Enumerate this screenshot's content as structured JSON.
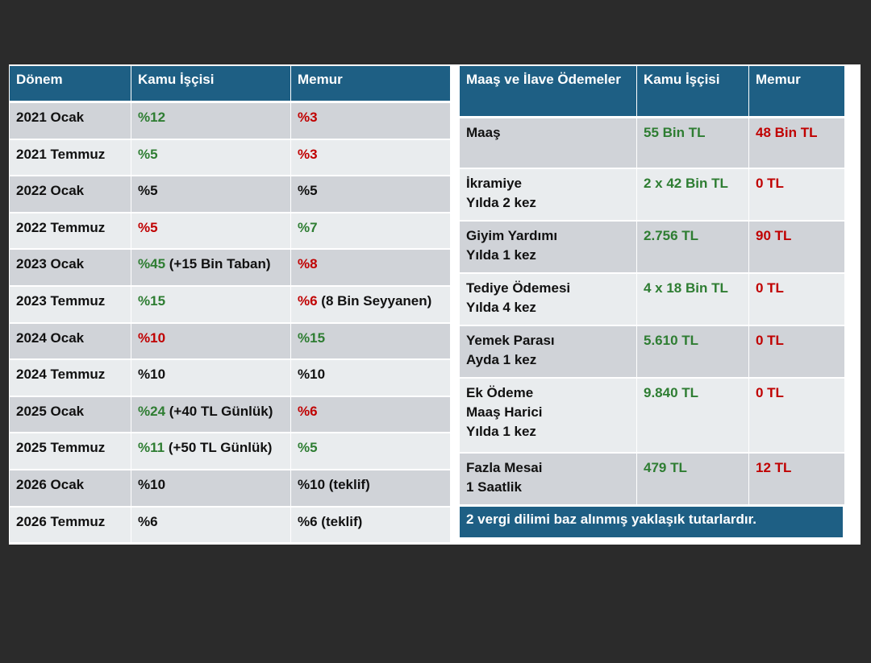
{
  "left_table": {
    "headers": [
      "Dönem",
      "Kamu İşçisi",
      "Memur"
    ],
    "rows": [
      {
        "period": "2021 Ocak",
        "worker": "%12",
        "worker_color": "g",
        "worker_extra": "",
        "officer": "%3",
        "officer_color": "r",
        "officer_extra": ""
      },
      {
        "period": "2021 Temmuz",
        "worker": "%5",
        "worker_color": "g",
        "worker_extra": "",
        "officer": "%3",
        "officer_color": "r",
        "officer_extra": ""
      },
      {
        "period": "2022 Ocak",
        "worker": "%5",
        "worker_color": "k",
        "worker_extra": "",
        "officer": "%5",
        "officer_color": "k",
        "officer_extra": ""
      },
      {
        "period": "2022 Temmuz",
        "worker": "%5",
        "worker_color": "r",
        "worker_extra": "",
        "officer": "%7",
        "officer_color": "g",
        "officer_extra": ""
      },
      {
        "period": "2023 Ocak",
        "worker": "%45",
        "worker_color": "g",
        "worker_extra": " (+15 Bin Taban)",
        "officer": "%8",
        "officer_color": "r",
        "officer_extra": ""
      },
      {
        "period": "2023 Temmuz",
        "worker": "%15",
        "worker_color": "g",
        "worker_extra": "",
        "officer": "%6",
        "officer_color": "r",
        "officer_extra": " (8 Bin Seyyanen)"
      },
      {
        "period": "2024 Ocak",
        "worker": "%10",
        "worker_color": "r",
        "worker_extra": "",
        "officer": "%15",
        "officer_color": "g",
        "officer_extra": ""
      },
      {
        "period": "2024 Temmuz",
        "worker": "%10",
        "worker_color": "k",
        "worker_extra": "",
        "officer": "%10",
        "officer_color": "k",
        "officer_extra": ""
      },
      {
        "period": "2025 Ocak",
        "worker": "%24",
        "worker_color": "g",
        "worker_extra": " (+40 TL Günlük)",
        "officer": "%6",
        "officer_color": "r",
        "officer_extra": ""
      },
      {
        "period": "2025 Temmuz",
        "worker": "%11",
        "worker_color": "g",
        "worker_extra": " (+50 TL Günlük)",
        "officer": "%5",
        "officer_color": "g",
        "officer_extra": ""
      },
      {
        "period": "2026 Ocak",
        "worker": "%10",
        "worker_color": "k",
        "worker_extra": "",
        "officer": "%10 (teklif)",
        "officer_color": "k",
        "officer_extra": ""
      },
      {
        "period": "2026 Temmuz",
        "worker": "%6",
        "worker_color": "k",
        "worker_extra": "",
        "officer": "%6 (teklif)",
        "officer_color": "k",
        "officer_extra": ""
      }
    ]
  },
  "right_table": {
    "headers": [
      "Maaş ve İlave Ödemeler",
      "Kamu İşçisi",
      "Memur"
    ],
    "rows": [
      {
        "item": [
          "Maaş"
        ],
        "worker": "55 Bin TL",
        "officer": "48 Bin TL"
      },
      {
        "item": [
          "İkramiye",
          "Yılda 2 kez"
        ],
        "worker": "2 x 42 Bin TL",
        "officer": "0 TL"
      },
      {
        "item": [
          "Giyim Yardımı",
          "Yılda 1 kez"
        ],
        "worker": "2.756 TL",
        "officer": "90 TL"
      },
      {
        "item": [
          "Tediye Ödemesi",
          "Yılda 4 kez"
        ],
        "worker": "4 x 18 Bin TL",
        "officer": "0 TL"
      },
      {
        "item": [
          "Yemek Parası",
          "Ayda 1 kez"
        ],
        "worker": "5.610 TL",
        "officer": "0 TL"
      },
      {
        "item": [
          "Ek Ödeme",
          "Maaş Harici",
          "Yılda 1 kez"
        ],
        "worker": "9.840 TL",
        "officer": "0 TL"
      },
      {
        "item": [
          "Fazla Mesai",
          "1 Saatlik"
        ],
        "worker": "479 TL",
        "officer": "12 TL"
      }
    ],
    "note": "2 vergi dilimi baz alınmış yaklaşık tutarlardır."
  },
  "colors": {
    "header": "#1e5f84",
    "green": "#2e7d32",
    "red": "#c00000",
    "row_dark": "#d0d3d8",
    "row_light": "#e9ecee"
  }
}
